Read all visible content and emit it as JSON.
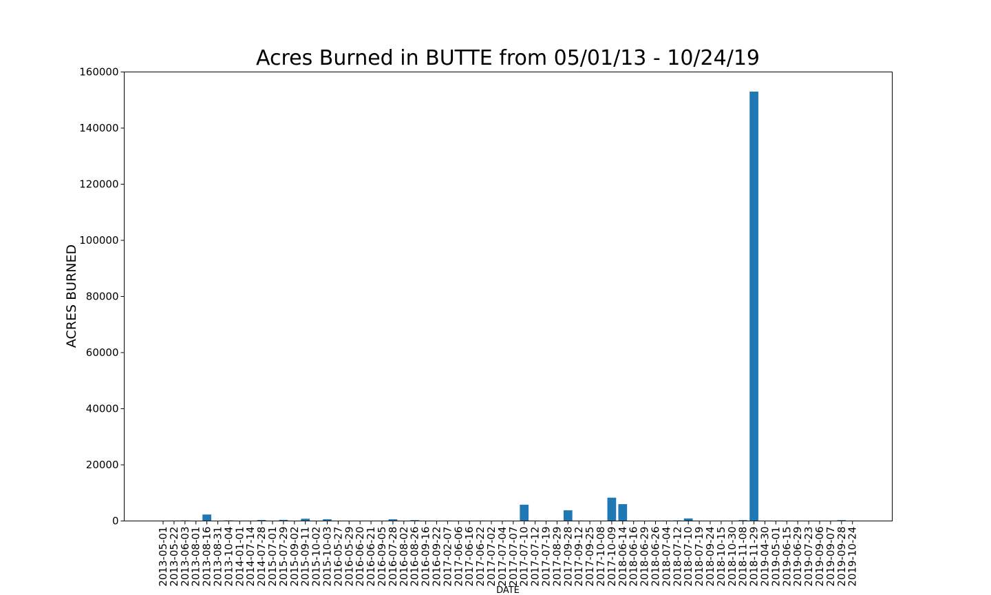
{
  "chart_data": {
    "type": "bar",
    "title": "Acres Burned in BUTTE from 05/01/13 - 10/24/19",
    "xlabel": "DATE",
    "ylabel": "ACRES BURNED",
    "ylim": [
      0,
      160000
    ],
    "yticks": [
      0,
      20000,
      40000,
      60000,
      80000,
      100000,
      120000,
      140000,
      160000
    ],
    "grid": false,
    "bar_color": "#1f77b4",
    "categories": [
      "2013-05-01",
      "2013-05-22",
      "2013-06-03",
      "2013-08-01",
      "2013-08-16",
      "2013-08-31",
      "2013-10-04",
      "2014-01-01",
      "2014-07-14",
      "2014-07-28",
      "2015-07-01",
      "2015-07-29",
      "2015-09-02",
      "2015-09-11",
      "2015-10-02",
      "2015-10-03",
      "2016-05-27",
      "2016-05-29",
      "2016-06-20",
      "2016-06-21",
      "2016-09-05",
      "2016-07-28",
      "2016-08-02",
      "2016-08-26",
      "2016-09-16",
      "2016-09-22",
      "2017-02-07",
      "2017-06-06",
      "2017-06-16",
      "2017-06-22",
      "2017-07-02",
      "2017-07-04",
      "2017-07-07",
      "2017-07-10",
      "2017-07-12",
      "2017-07-19",
      "2017-08-29",
      "2017-09-28",
      "2017-09-12",
      "2017-09-25",
      "2017-10-08",
      "2017-10-09",
      "2018-06-14",
      "2018-06-16",
      "2018-06-29",
      "2018-06-26",
      "2018-07-04",
      "2018-07-12",
      "2018-07-10",
      "2018-07-19",
      "2018-09-24",
      "2018-10-15",
      "2018-10-30",
      "2018-11-08",
      "2018-11-29",
      "2019-04-30",
      "2019-05-01",
      "2019-06-15",
      "2019-06-29",
      "2019-07-23",
      "2019-09-06",
      "2019-09-07",
      "2019-09-28",
      "2019-10-24"
    ],
    "values": [
      0,
      150,
      200,
      0,
      2300,
      0,
      200,
      0,
      0,
      350,
      0,
      400,
      0,
      800,
      0,
      600,
      0,
      0,
      0,
      0,
      0,
      600,
      0,
      300,
      0,
      0,
      150,
      0,
      0,
      150,
      0,
      0,
      0,
      5800,
      150,
      0,
      0,
      3800,
      150,
      0,
      0,
      8300,
      6000,
      0,
      0,
      0,
      150,
      200,
      900,
      0,
      0,
      0,
      0,
      300,
      153000,
      0,
      0,
      0,
      0,
      0,
      0,
      0,
      300,
      150
    ]
  }
}
